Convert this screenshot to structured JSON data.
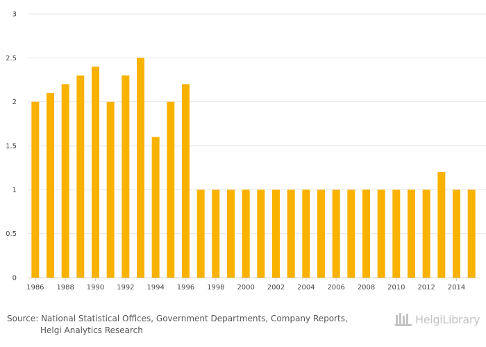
{
  "chart_data": {
    "type": "bar",
    "title": "",
    "xlabel": "",
    "ylabel": "",
    "ylim": [
      0,
      3
    ],
    "yticks": [
      "0",
      "0.5",
      "1",
      "1.5",
      "2",
      "2.5",
      "3"
    ],
    "grid": true,
    "legend": "none",
    "bar_color": "#F9B200",
    "categories": [
      "1986",
      "1987",
      "1988",
      "1989",
      "1990",
      "1991",
      "1992",
      "1993",
      "1994",
      "1995",
      "1996",
      "1997",
      "1998",
      "1999",
      "2000",
      "2001",
      "2002",
      "2003",
      "2004",
      "2005",
      "2006",
      "2007",
      "2008",
      "2009",
      "2010",
      "2011",
      "2012",
      "2013",
      "2014",
      "2015"
    ],
    "x_tick_labels": [
      "1986",
      "1988",
      "1990",
      "1992",
      "1994",
      "1996",
      "1998",
      "2000",
      "2002",
      "2004",
      "2006",
      "2008",
      "2010",
      "2012",
      "2014"
    ],
    "values": [
      2.0,
      2.1,
      2.2,
      2.3,
      2.4,
      2.0,
      2.3,
      2.5,
      1.6,
      2.0,
      2.2,
      1.0,
      1.0,
      1.0,
      1.0,
      1.0,
      1.0,
      1.0,
      1.0,
      1.0,
      1.0,
      1.0,
      1.0,
      1.0,
      1.0,
      1.0,
      1.0,
      1.2,
      1.0,
      1.0
    ]
  },
  "footer": {
    "source_line1": "Source: National Statistical Offices, Government Departments, Company Reports,",
    "source_line2": "Helgi Analytics Research",
    "logo_text": "HelgiLibrary"
  },
  "colors": {
    "grid": "#e6e6e6",
    "axis": "#cccccc",
    "logo": "#c3c3c3"
  }
}
